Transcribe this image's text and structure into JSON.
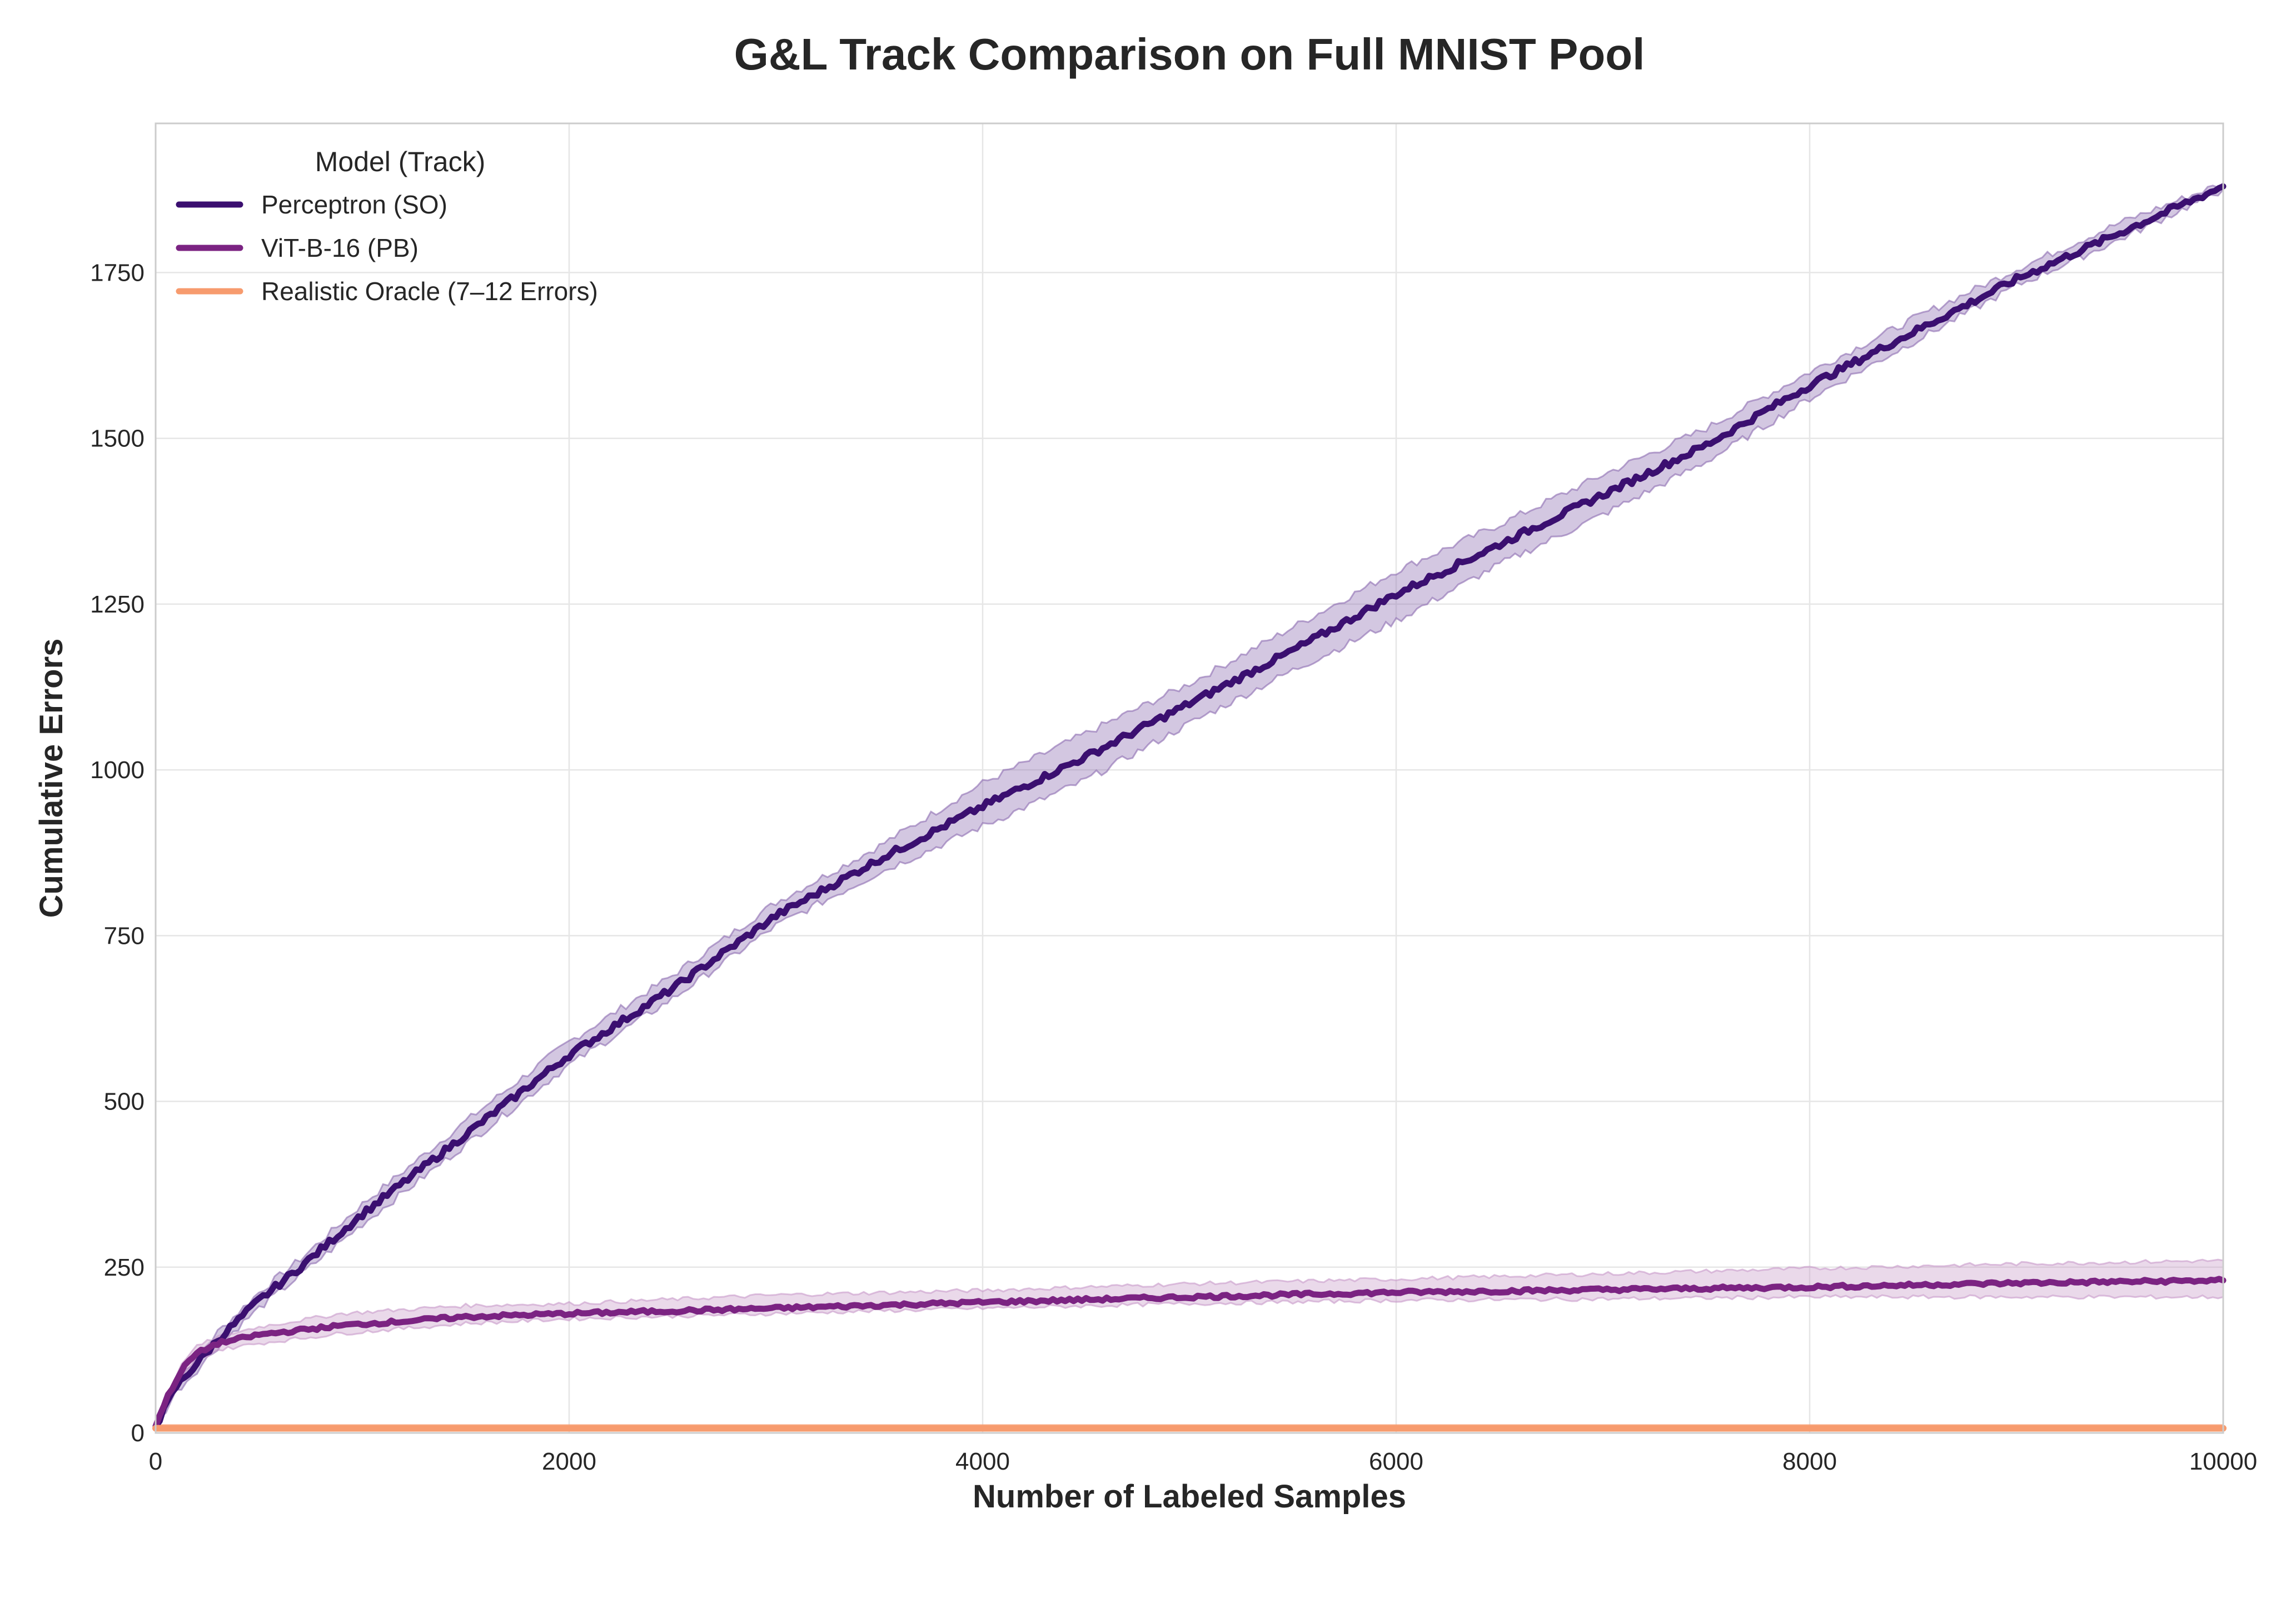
{
  "chart_data": {
    "type": "line",
    "title": "G&L Track Comparison on Full MNIST Pool",
    "xlabel": "Number of Labeled Samples",
    "ylabel": "Cumulative Errors",
    "xlim": [
      0,
      10000
    ],
    "ylim": [
      0,
      1975
    ],
    "x_ticks": [
      0,
      2000,
      4000,
      6000,
      8000,
      10000
    ],
    "y_ticks": [
      0,
      250,
      500,
      750,
      1000,
      1250,
      1500,
      1750
    ],
    "grid": true,
    "legend": {
      "title": "Model (Track)",
      "placement": "top-left",
      "entries": [
        "Perceptron (SO)",
        "ViT-B-16 (PB)",
        "Realistic Oracle (7–12 Errors)"
      ]
    },
    "series": [
      {
        "name": "Perceptron (SO)",
        "color": "#3b0f70",
        "band_color": "#8c6bb1",
        "x": [
          0,
          100,
          200,
          300,
          400,
          500,
          700,
          1000,
          1500,
          2000,
          2500,
          3000,
          3500,
          4000,
          4500,
          5000,
          5500,
          6000,
          6500,
          7000,
          7500,
          8000,
          8500,
          9000,
          9500,
          10000
        ],
        "y": [
          10,
          70,
          105,
          140,
          170,
          200,
          250,
          330,
          450,
          570,
          670,
          780,
          865,
          945,
          1020,
          1100,
          1180,
          1265,
          1340,
          1415,
          1490,
          1580,
          1660,
          1740,
          1810,
          1880
        ],
        "lower": [
          8,
          62,
          95,
          130,
          160,
          188,
          238,
          315,
          435,
          555,
          655,
          765,
          845,
          915,
          985,
          1070,
          1150,
          1225,
          1310,
          1385,
          1465,
          1560,
          1645,
          1730,
          1800,
          1875
        ],
        "upper": [
          12,
          78,
          115,
          152,
          182,
          212,
          262,
          345,
          470,
          590,
          690,
          800,
          885,
          980,
          1055,
          1130,
          1215,
          1300,
          1370,
          1445,
          1515,
          1600,
          1680,
          1755,
          1825,
          1885
        ]
      },
      {
        "name": "ViT-B-16 (PB)",
        "color": "#7b2382",
        "band_color": "#c89ac9",
        "x": [
          0,
          50,
          100,
          150,
          200,
          300,
          500,
          900,
          1500,
          2000,
          3000,
          4000,
          5000,
          6000,
          7000,
          8000,
          9000,
          10000
        ],
        "y": [
          10,
          50,
          80,
          105,
          120,
          135,
          148,
          162,
          175,
          180,
          188,
          197,
          205,
          212,
          216,
          220,
          226,
          230
        ],
        "lower": [
          8,
          45,
          72,
          95,
          110,
          125,
          135,
          150,
          165,
          172,
          180,
          188,
          195,
          200,
          202,
          205,
          205,
          205
        ],
        "upper": [
          12,
          55,
          88,
          115,
          130,
          145,
          160,
          180,
          192,
          195,
          208,
          215,
          225,
          232,
          240,
          248,
          255,
          260
        ]
      },
      {
        "name": "Realistic Oracle (7–12 Errors)",
        "color": "#f79b6e",
        "x": [
          0,
          10000
        ],
        "y": [
          7,
          7
        ],
        "lower": [
          7,
          7
        ],
        "upper": [
          12,
          12
        ]
      }
    ]
  }
}
